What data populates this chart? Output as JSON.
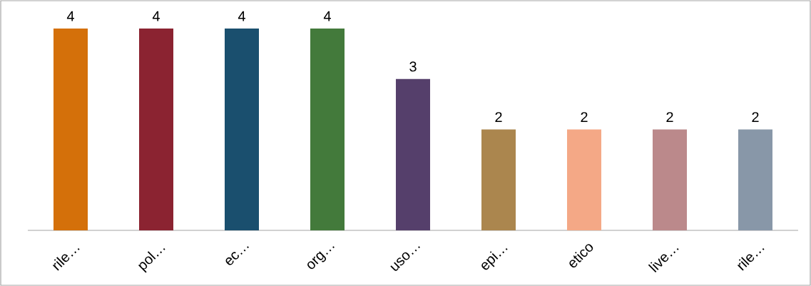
{
  "chart_data": {
    "type": "bar",
    "categories": [
      "rile…",
      "pol…",
      "ec…",
      "org…",
      "uso…",
      "epi…",
      "etico",
      "live…",
      "rile…"
    ],
    "values": [
      4,
      4,
      4,
      4,
      3,
      2,
      2,
      2,
      2
    ],
    "colors": [
      "#d4700a",
      "#8b2331",
      "#1a4f6e",
      "#437a3b",
      "#553f6b",
      "#ab864e",
      "#f4a886",
      "#bb898b",
      "#8897a8"
    ],
    "ylim": [
      0,
      4
    ],
    "data_labels": true
  }
}
